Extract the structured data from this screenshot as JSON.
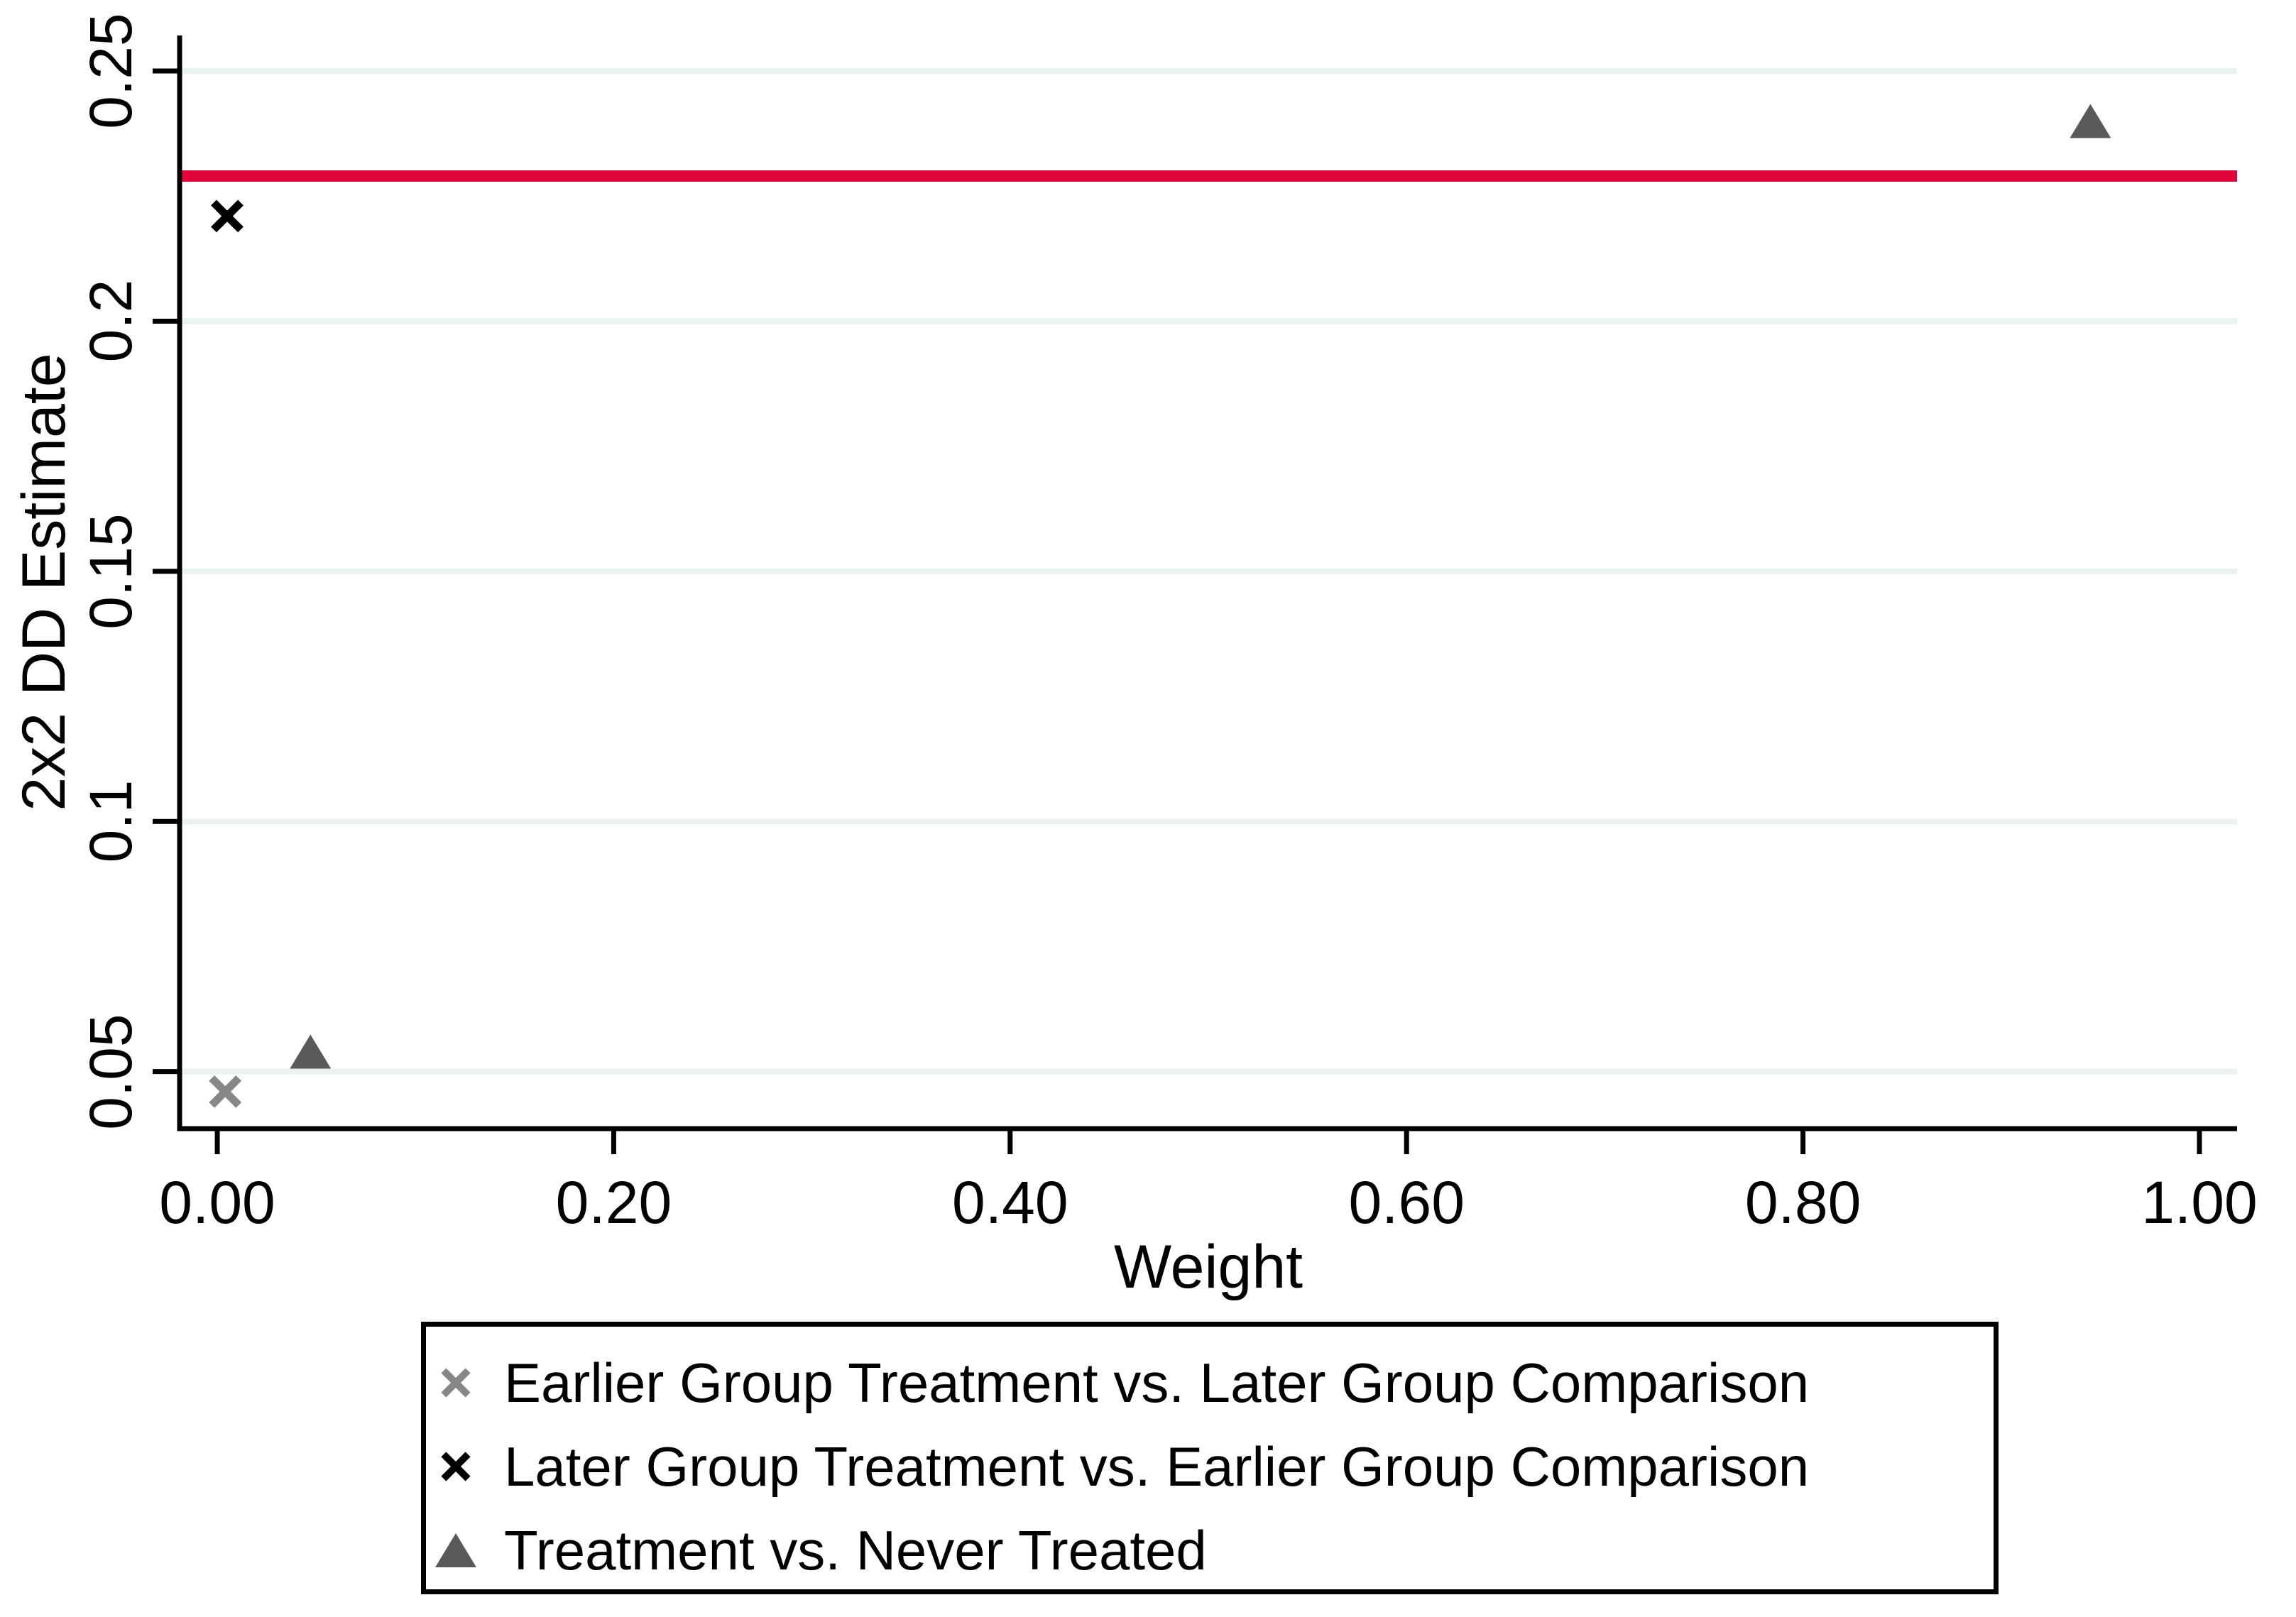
{
  "chart_data": {
    "type": "scatter",
    "title": "",
    "xlabel": "Weight",
    "ylabel": "2x2 DD Estimate",
    "xlim": [
      -0.019,
      1.019
    ],
    "ylim": [
      0.0386,
      0.2571
    ],
    "grid": "horizontal-only",
    "legend_position": "bottom",
    "x_ticks": [
      {
        "value": 0.0,
        "label": "0.00"
      },
      {
        "value": 0.2,
        "label": "0.20"
      },
      {
        "value": 0.4,
        "label": "0.40"
      },
      {
        "value": 0.6,
        "label": "0.60"
      },
      {
        "value": 0.8,
        "label": "0.80"
      },
      {
        "value": 1.0,
        "label": "1.00"
      }
    ],
    "y_ticks": [
      {
        "value": 0.05,
        "label": "0.05"
      },
      {
        "value": 0.1,
        "label": "0.1"
      },
      {
        "value": 0.15,
        "label": "0.15"
      },
      {
        "value": 0.2,
        "label": "0.2"
      },
      {
        "value": 0.25,
        "label": "0.25"
      }
    ],
    "series": [
      {
        "name": "Earlier Group Treatment vs. Later Group Comparison",
        "marker": "x",
        "color": "#878787",
        "points": [
          {
            "x": 0.004,
            "y": 0.046
          }
        ]
      },
      {
        "name": "Later Group Treatment vs. Earlier Group Comparison",
        "marker": "x",
        "color": "#000000",
        "points": [
          {
            "x": 0.005,
            "y": 0.221
          }
        ]
      },
      {
        "name": "Treatment vs. Never Treated",
        "marker": "triangle",
        "color": "#5a5a5a",
        "points": [
          {
            "x": 0.047,
            "y": 0.054
          },
          {
            "x": 0.945,
            "y": 0.24
          }
        ]
      }
    ],
    "reference_line": {
      "value": 0.229,
      "color": "#e1053c",
      "orientation": "horizontal"
    },
    "colors": {
      "axis": "#000000",
      "grid": "#eaf2f3",
      "background": "#ffffff"
    }
  }
}
